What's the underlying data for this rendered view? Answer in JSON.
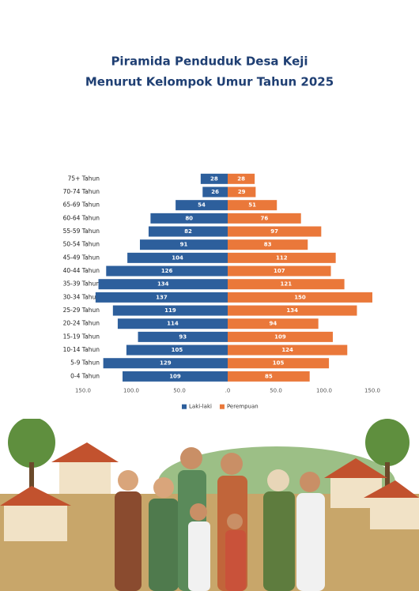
{
  "chart_data": {
    "type": "pyramid",
    "title": "Piramida Penduduk Desa Keji",
    "subtitle": "Menurut Kelompok Umur Tahun 2025",
    "categories": [
      "75+ Tahun",
      "70-74 Tahun",
      "65-69 Tahun",
      "60-64 Tahun",
      "55-59 Tahun",
      "50-54 Tahun",
      "45-49 Tahun",
      "40-44 Tahun",
      "35-39 Tahun",
      "30-34 Tahun",
      "25-29 Tahun",
      "20-24 Tahun",
      "15-19 Tahun",
      "10-14 Tahun",
      "5-9 Tahun",
      "0-4 Tahun"
    ],
    "series": [
      {
        "name": "Laki-laki",
        "color": "#2d5f9c",
        "side": "left",
        "values": [
          28,
          26,
          54,
          80,
          82,
          91,
          104,
          126,
          134,
          137,
          119,
          114,
          93,
          105,
          129,
          109
        ]
      },
      {
        "name": "Perempuan",
        "color": "#ea783a",
        "side": "right",
        "values": [
          28,
          29,
          51,
          76,
          97,
          83,
          112,
          107,
          121,
          150,
          134,
          94,
          109,
          124,
          105,
          85
        ]
      }
    ],
    "xlim": [
      -150,
      150
    ],
    "xticks": [
      {
        "value": -150,
        "label": "150.0"
      },
      {
        "value": -100,
        "label": "100.0"
      },
      {
        "value": -50,
        "label": "50.0"
      },
      {
        "value": 0,
        "label": ".0"
      },
      {
        "value": 50,
        "label": "50.0"
      },
      {
        "value": 100,
        "label": "100.0"
      },
      {
        "value": 150,
        "label": "150.0"
      }
    ],
    "legend": "bottom"
  }
}
